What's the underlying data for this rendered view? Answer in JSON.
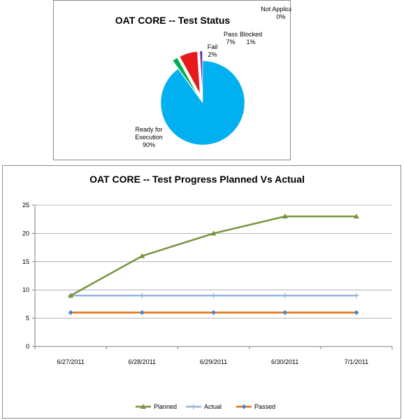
{
  "chart_data": [
    {
      "type": "pie",
      "title": "OAT CORE -- Test Status",
      "slices": [
        {
          "name": "Ready for Execution",
          "value": 90,
          "label_lines": [
            "Ready for",
            "Execution",
            "90%"
          ],
          "color": "#00B0F0"
        },
        {
          "name": "Fail",
          "value": 2,
          "label_lines": [
            "Fail",
            "2%"
          ],
          "color": "#00B050"
        },
        {
          "name": "Pass",
          "value": 7,
          "label_lines": [
            "Pass",
            "7%"
          ],
          "color": "#E8191C"
        },
        {
          "name": "Blocked",
          "value": 1,
          "label_lines": [
            "Blocked",
            "1%"
          ],
          "color": "#7030A0"
        },
        {
          "name": "Not Applicable",
          "value": 0,
          "label_lines": [
            "Not Applicable",
            "0%"
          ],
          "color": "#A0A0A0"
        }
      ]
    },
    {
      "type": "line",
      "title": "OAT CORE -- Test Progress Planned Vs Actual",
      "categories": [
        "6/27/2011",
        "6/28/2011",
        "6/29/2011",
        "6/30/2011",
        "7/1/2011"
      ],
      "ylim": [
        0,
        25
      ],
      "yticks": [
        0,
        5,
        10,
        15,
        20,
        25
      ],
      "grid": true,
      "legend": "bottom",
      "series": [
        {
          "name": "Planned",
          "values": [
            9,
            16,
            20,
            23,
            23
          ],
          "color": "#77933C",
          "marker": "triangle"
        },
        {
          "name": "Actual",
          "values": [
            9,
            9,
            9,
            9,
            9
          ],
          "color": "#95B3D7",
          "marker": "plus"
        },
        {
          "name": "Passed",
          "values": [
            6,
            6,
            6,
            6,
            6
          ],
          "color": "#E36C09",
          "marker": "diamond",
          "marker_color": "#4F81BD"
        }
      ]
    }
  ]
}
